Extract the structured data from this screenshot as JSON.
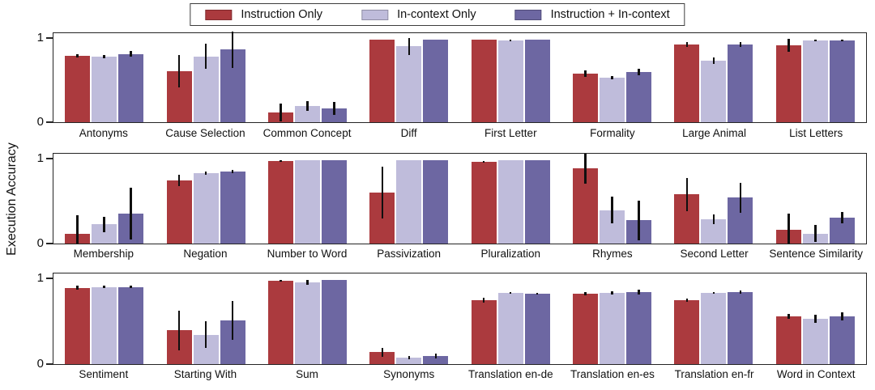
{
  "figure": {
    "ylabel": "Execution Accuracy"
  },
  "chart_data": {
    "type": "bar",
    "title": "",
    "xlabel": "",
    "ylabel": "Execution Accuracy",
    "ylim": [
      0,
      1
    ],
    "yticks": [
      0,
      1
    ],
    "grid": false,
    "legend_position": "top-center",
    "error_bars": true,
    "series": [
      {
        "name": "Instruction Only",
        "color": "#ab3a3e"
      },
      {
        "name": "In-context Only",
        "color": "#bfbcdb"
      },
      {
        "name": "Instruction + In-context",
        "color": "#6d67a2"
      }
    ],
    "subplots": [
      {
        "categories": [
          "Antonyms",
          "Cause Selection",
          "Common Concept",
          "Diff",
          "First Letter",
          "Formality",
          "Large Animal",
          "List Letters"
        ],
        "values": [
          [
            0.81,
            0.8,
            0.83
          ],
          [
            0.62,
            0.8,
            0.88
          ],
          [
            0.12,
            0.2,
            0.17
          ],
          [
            1.0,
            0.92,
            1.0
          ],
          [
            1.0,
            0.99,
            1.0
          ],
          [
            0.59,
            0.54,
            0.61
          ],
          [
            0.94,
            0.75,
            0.94
          ],
          [
            0.93,
            0.99,
            0.99
          ]
        ],
        "errors": [
          [
            0.02,
            0.02,
            0.03
          ],
          [
            0.2,
            0.15,
            0.22
          ],
          [
            0.11,
            0.06,
            0.08
          ],
          [
            0.0,
            0.1,
            0.0
          ],
          [
            0.0,
            0.01,
            0.0
          ],
          [
            0.04,
            0.02,
            0.04
          ],
          [
            0.03,
            0.04,
            0.03
          ],
          [
            0.08,
            0.01,
            0.01
          ]
        ]
      },
      {
        "categories": [
          "Membership",
          "Negation",
          "Number to Word",
          "Passivization",
          "Pluralization",
          "Rhymes",
          "Second Letter",
          "Sentence Similarity"
        ],
        "values": [
          [
            0.12,
            0.23,
            0.36
          ],
          [
            0.76,
            0.85,
            0.87
          ],
          [
            0.99,
            1.0,
            1.0
          ],
          [
            0.61,
            1.0,
            1.0
          ],
          [
            0.98,
            1.0,
            1.0
          ],
          [
            0.9,
            0.4,
            0.28
          ],
          [
            0.59,
            0.29,
            0.55
          ],
          [
            0.17,
            0.12,
            0.31
          ]
        ],
        "errors": [
          [
            0.22,
            0.09,
            0.31
          ],
          [
            0.07,
            0.02,
            0.02
          ],
          [
            0.01,
            0.0,
            0.0
          ],
          [
            0.31,
            0.0,
            0.0
          ],
          [
            0.01,
            0.0,
            0.0
          ],
          [
            0.18,
            0.16,
            0.24
          ],
          [
            0.2,
            0.06,
            0.18
          ],
          [
            0.19,
            0.1,
            0.07
          ]
        ]
      },
      {
        "categories": [
          "Sentiment",
          "Starting With",
          "Sum",
          "Synonyms",
          "Translation en-de",
          "Translation en-es",
          "Translation en-fr",
          "Word in Context"
        ],
        "values": [
          [
            0.91,
            0.92,
            0.92
          ],
          [
            0.4,
            0.35,
            0.52
          ],
          [
            0.99,
            0.97,
            1.0
          ],
          [
            0.14,
            0.08,
            0.1
          ],
          [
            0.76,
            0.85,
            0.84
          ],
          [
            0.84,
            0.85,
            0.86
          ],
          [
            0.76,
            0.85,
            0.86
          ],
          [
            0.57,
            0.54,
            0.57
          ]
        ],
        "errors": [
          [
            0.02,
            0.01,
            0.01
          ],
          [
            0.24,
            0.16,
            0.23
          ],
          [
            0.01,
            0.03,
            0.0
          ],
          [
            0.05,
            0.02,
            0.03
          ],
          [
            0.03,
            0.01,
            0.01
          ],
          [
            0.02,
            0.02,
            0.03
          ],
          [
            0.02,
            0.01,
            0.02
          ],
          [
            0.03,
            0.05,
            0.05
          ]
        ]
      }
    ]
  }
}
